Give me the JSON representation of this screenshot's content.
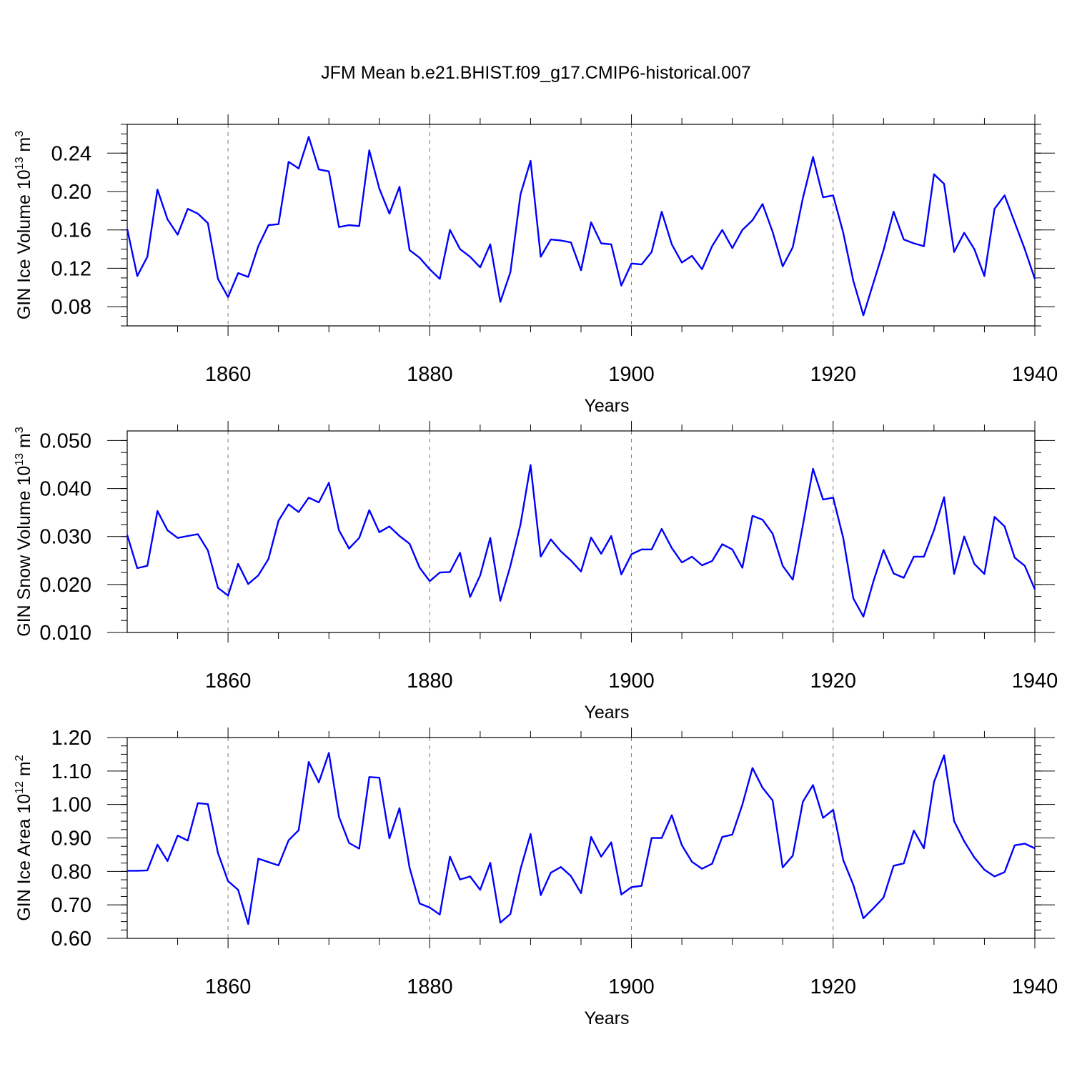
{
  "title": "JFM Mean b.e21.BHIST.f09_g17.CMIP6-historical.007",
  "colors": {
    "series": "#0000ff",
    "axis": "#000000",
    "grid": "#777777"
  },
  "chart_data": [
    {
      "type": "line",
      "title": "JFM Mean b.e21.BHIST.f09_g17.CMIP6-historical.007",
      "xlabel": "Years",
      "ylabel_base": "GIN Ice Volume 10",
      "ylabel_exp": "13",
      "ylabel_unit": " m",
      "ylabel_unit_exp": "3",
      "xlim": [
        1850,
        1940
      ],
      "ylim": [
        0.06,
        0.27
      ],
      "grid": "dashed vertical at major x ticks",
      "x_ticks": [
        1860,
        1880,
        1900,
        1920,
        1940
      ],
      "x_tick_labels": [
        "1860",
        "1880",
        "1900",
        "1920",
        "1940"
      ],
      "y_ticks": [
        0.08,
        0.12,
        0.16,
        0.2,
        0.24
      ],
      "y_tick_labels": [
        "0.08",
        "0.12",
        "0.16",
        "0.20",
        "0.24"
      ],
      "series": [
        {
          "name": "GIN Ice Volume",
          "x_start": 1850,
          "values": [
            0.161,
            0.112,
            0.132,
            0.202,
            0.171,
            0.155,
            0.182,
            0.177,
            0.167,
            0.109,
            0.09,
            0.115,
            0.111,
            0.143,
            0.165,
            0.166,
            0.231,
            0.224,
            0.257,
            0.223,
            0.221,
            0.163,
            0.165,
            0.164,
            0.243,
            0.203,
            0.177,
            0.205,
            0.139,
            0.131,
            0.119,
            0.109,
            0.16,
            0.14,
            0.132,
            0.121,
            0.145,
            0.085,
            0.116,
            0.197,
            0.232,
            0.132,
            0.15,
            0.149,
            0.147,
            0.118,
            0.168,
            0.146,
            0.145,
            0.102,
            0.125,
            0.124,
            0.137,
            0.179,
            0.145,
            0.126,
            0.133,
            0.119,
            0.143,
            0.16,
            0.141,
            0.16,
            0.17,
            0.187,
            0.158,
            0.122,
            0.142,
            0.193,
            0.236,
            0.194,
            0.196,
            0.157,
            0.107,
            0.071,
            0.105,
            0.139,
            0.179,
            0.15,
            0.146,
            0.143,
            0.218,
            0.208,
            0.137,
            0.157,
            0.14,
            0.112,
            0.182,
            0.196,
            0.168,
            0.14,
            0.109
          ]
        }
      ]
    },
    {
      "type": "line",
      "xlabel": "Years",
      "ylabel_base": "GIN Snow Volume 10",
      "ylabel_exp": "13",
      "ylabel_unit": " m",
      "ylabel_unit_exp": "3",
      "xlim": [
        1850,
        1940
      ],
      "ylim": [
        0.01,
        0.052
      ],
      "grid": "dashed vertical at major x ticks",
      "x_ticks": [
        1860,
        1880,
        1900,
        1920,
        1940
      ],
      "x_tick_labels": [
        "1860",
        "1880",
        "1900",
        "1920",
        "1940"
      ],
      "y_ticks": [
        0.01,
        0.02,
        0.03,
        0.04,
        0.05
      ],
      "y_tick_labels": [
        "0.010",
        "0.020",
        "0.030",
        "0.040",
        "0.050"
      ],
      "series": [
        {
          "name": "GIN Snow Volume",
          "x_start": 1850,
          "values": [
            0.0303,
            0.0234,
            0.0239,
            0.0353,
            0.0313,
            0.0297,
            0.0301,
            0.0305,
            0.0271,
            0.0193,
            0.0177,
            0.0243,
            0.0201,
            0.0219,
            0.0253,
            0.0333,
            0.0367,
            0.0351,
            0.0381,
            0.0371,
            0.0412,
            0.0313,
            0.0275,
            0.0297,
            0.0355,
            0.0309,
            0.0321,
            0.0301,
            0.0285,
            0.0235,
            0.0207,
            0.0225,
            0.0226,
            0.0266,
            0.0174,
            0.0219,
            0.0297,
            0.0166,
            0.0239,
            0.0325,
            0.0449,
            0.0258,
            0.0294,
            0.0269,
            0.025,
            0.0227,
            0.0298,
            0.0264,
            0.0301,
            0.0221,
            0.0263,
            0.0273,
            0.0273,
            0.0316,
            0.0276,
            0.0246,
            0.0258,
            0.024,
            0.0249,
            0.0284,
            0.0273,
            0.0235,
            0.0343,
            0.0335,
            0.0306,
            0.0239,
            0.021,
            0.0323,
            0.0441,
            0.0377,
            0.0381,
            0.0297,
            0.0171,
            0.0133,
            0.0207,
            0.0272,
            0.0223,
            0.0214,
            0.0258,
            0.0258,
            0.0313,
            0.0382,
            0.0222,
            0.03,
            0.0243,
            0.0222,
            0.0341,
            0.0321,
            0.0256,
            0.0239,
            0.019
          ]
        }
      ]
    },
    {
      "type": "line",
      "xlabel": "Years",
      "ylabel_base": "GIN Ice Area 10",
      "ylabel_exp": "12",
      "ylabel_unit": " m",
      "ylabel_unit_exp": "2",
      "xlim": [
        1850,
        1940
      ],
      "ylim": [
        0.6,
        1.2
      ],
      "grid": "dashed vertical at major x ticks",
      "x_ticks": [
        1860,
        1880,
        1900,
        1920,
        1940
      ],
      "x_tick_labels": [
        "1860",
        "1880",
        "1900",
        "1920",
        "1940"
      ],
      "y_ticks": [
        0.6,
        0.7,
        0.8,
        0.9,
        1.0,
        1.1,
        1.2
      ],
      "y_tick_labels": [
        "0.60",
        "0.70",
        "0.80",
        "0.90",
        "1.00",
        "1.10",
        "1.20"
      ],
      "series": [
        {
          "name": "GIN Ice Area",
          "x_start": 1850,
          "values": [
            0.802,
            0.802,
            0.803,
            0.88,
            0.831,
            0.907,
            0.892,
            1.004,
            1.001,
            0.855,
            0.771,
            0.745,
            0.643,
            0.838,
            0.828,
            0.818,
            0.893,
            0.923,
            1.127,
            1.066,
            1.154,
            0.963,
            0.885,
            0.868,
            1.082,
            1.08,
            0.899,
            0.989,
            0.811,
            0.704,
            0.692,
            0.671,
            0.844,
            0.776,
            0.785,
            0.745,
            0.826,
            0.647,
            0.673,
            0.807,
            0.912,
            0.729,
            0.796,
            0.813,
            0.786,
            0.735,
            0.903,
            0.844,
            0.887,
            0.731,
            0.753,
            0.757,
            0.9,
            0.9,
            0.968,
            0.878,
            0.829,
            0.808,
            0.823,
            0.903,
            0.91,
            1.0,
            1.109,
            1.05,
            1.012,
            0.812,
            0.847,
            1.008,
            1.058,
            0.96,
            0.984,
            0.834,
            0.76,
            0.66,
            0.69,
            0.722,
            0.817,
            0.824,
            0.922,
            0.869,
            1.067,
            1.147,
            0.95,
            0.89,
            0.842,
            0.805,
            0.785,
            0.798,
            0.878,
            0.883,
            0.869
          ]
        }
      ]
    }
  ]
}
